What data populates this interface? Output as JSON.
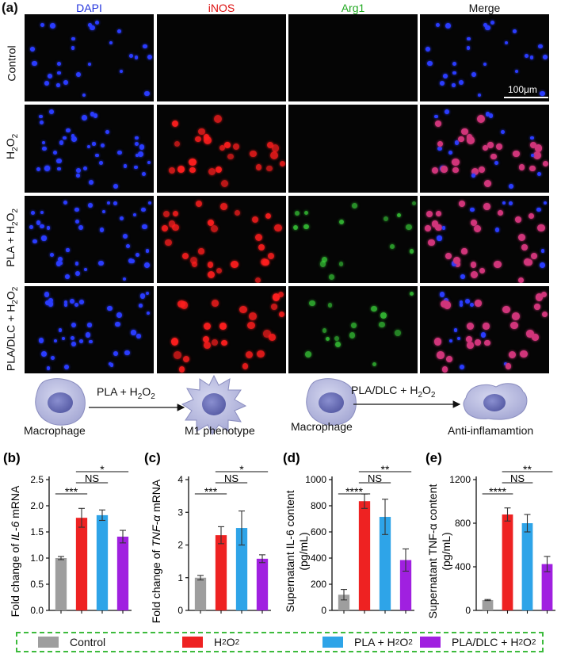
{
  "panel_a": {
    "letter": "(a)",
    "columns": [
      {
        "label": "DAPI",
        "color": "#2233dd"
      },
      {
        "label": "iNOS",
        "color": "#dd1111"
      },
      {
        "label": "Arg1",
        "color": "#22aa22"
      },
      {
        "label": "Merge",
        "color": "#111111"
      }
    ],
    "rows": [
      {
        "label_main": "Control",
        "label_sub": "",
        "label_tail": ""
      },
      {
        "label_main": "H",
        "label_sub": "2",
        "label_tail": "O",
        "label_sub2": "2"
      },
      {
        "label_main": "PLA + H",
        "label_sub": "2",
        "label_tail": "O",
        "label_sub2": "2"
      },
      {
        "label_main": "PLA/DLC + H",
        "label_sub": "2",
        "label_tail": "O",
        "label_sub2": "2"
      }
    ],
    "scale_bar": "100μm"
  },
  "schematic": {
    "left": {
      "arrow_label": "PLA + H",
      "arrow_sub": "2",
      "arrow_tail": "O",
      "arrow_sub2": "2",
      "from": "Macrophage",
      "to": "M1 phenotype"
    },
    "right": {
      "arrow_label": "PLA/DLC + H",
      "arrow_sub": "2",
      "arrow_tail": "O",
      "arrow_sub2": "2",
      "from": "Macrophage",
      "to": "Anti-inflamamtion"
    }
  },
  "legend": [
    {
      "label": "Control",
      "color": "#9e9e9e"
    },
    {
      "label_main": "H",
      "label_sub": "2",
      "label_tail": "O",
      "label_sub2": "2",
      "color": "#ee2222"
    },
    {
      "label_main": "PLA + H",
      "label_sub": "2",
      "label_tail": "O",
      "label_sub2": "2",
      "color": "#2ea4e8"
    },
    {
      "label_main": "PLA/DLC + H",
      "label_sub": "2",
      "label_tail": "O",
      "label_sub2": "2",
      "color": "#a020e0"
    }
  ],
  "chart_data": [
    {
      "type": "bar",
      "letter": "(b)",
      "ylabel_parts": [
        "Fold change of ",
        "IL-6",
        " mRNA"
      ],
      "categories": [
        "Control",
        "H2O2",
        "PLA + H2O2",
        "PLA/DLC + H2O2"
      ],
      "values": [
        1.0,
        1.77,
        1.82,
        1.41
      ],
      "errors": [
        0.03,
        0.18,
        0.1,
        0.12
      ],
      "ylim": [
        0,
        2.5
      ],
      "yticks": [
        0,
        0.5,
        1.0,
        1.5,
        2.0,
        2.5
      ],
      "yticklabels": [
        "0.0",
        "0.5",
        "1.0",
        "1.5",
        "2.0",
        "2.5"
      ],
      "significance": [
        {
          "label": "***",
          "from": 0,
          "to": 1
        },
        {
          "label": "NS",
          "from": 1,
          "to": 2
        },
        {
          "label": "*",
          "from": 1,
          "to": 3
        }
      ]
    },
    {
      "type": "bar",
      "letter": "(c)",
      "ylabel_parts": [
        "Fold change of ",
        "TNF-α",
        " mRNA"
      ],
      "categories": [
        "Control",
        "H2O2",
        "PLA + H2O2",
        "PLA/DLC + H2O2"
      ],
      "values": [
        1.0,
        2.3,
        2.52,
        1.58
      ],
      "errors": [
        0.07,
        0.26,
        0.52,
        0.12
      ],
      "ylim": [
        0,
        4
      ],
      "yticks": [
        0,
        1,
        2,
        3,
        4
      ],
      "yticklabels": [
        "0",
        "1",
        "2",
        "3",
        "4"
      ],
      "significance": [
        {
          "label": "***",
          "from": 0,
          "to": 1
        },
        {
          "label": "NS",
          "from": 1,
          "to": 2
        },
        {
          "label": "*",
          "from": 1,
          "to": 3
        }
      ]
    },
    {
      "type": "bar",
      "letter": "(d)",
      "ylabel_parts": [
        "Supernatant IL-6 content"
      ],
      "ylabel2": "(pg/mL)",
      "categories": [
        "Control",
        "H2O2",
        "PLA + H2O2",
        "PLA/DLC + H2O2"
      ],
      "values": [
        120,
        835,
        715,
        385
      ],
      "errors": [
        40,
        55,
        135,
        85
      ],
      "ylim": [
        0,
        1000
      ],
      "yticks": [
        0,
        200,
        400,
        600,
        800,
        1000
      ],
      "yticklabels": [
        "0",
        "200",
        "400",
        "600",
        "800",
        "1000"
      ],
      "significance": [
        {
          "label": "****",
          "from": 0,
          "to": 1
        },
        {
          "label": "NS",
          "from": 1,
          "to": 2
        },
        {
          "label": "**",
          "from": 1,
          "to": 3
        }
      ]
    },
    {
      "type": "bar",
      "letter": "(e)",
      "ylabel_parts": [
        "Supernatant TNF-α content"
      ],
      "ylabel2": "(pg/mL)",
      "categories": [
        "Control",
        "H2O2",
        "PLA + H2O2",
        "PLA/DLC + H2O2"
      ],
      "values": [
        95,
        880,
        800,
        425
      ],
      "errors": [
        5,
        60,
        80,
        70
      ],
      "ylim": [
        0,
        1200
      ],
      "yticks": [
        0,
        400,
        800,
        1200
      ],
      "yticklabels": [
        "0",
        "400",
        "800",
        "1200"
      ],
      "significance": [
        {
          "label": "****",
          "from": 0,
          "to": 1
        },
        {
          "label": "NS",
          "from": 1,
          "to": 2
        },
        {
          "label": "**",
          "from": 1,
          "to": 3
        }
      ]
    }
  ]
}
